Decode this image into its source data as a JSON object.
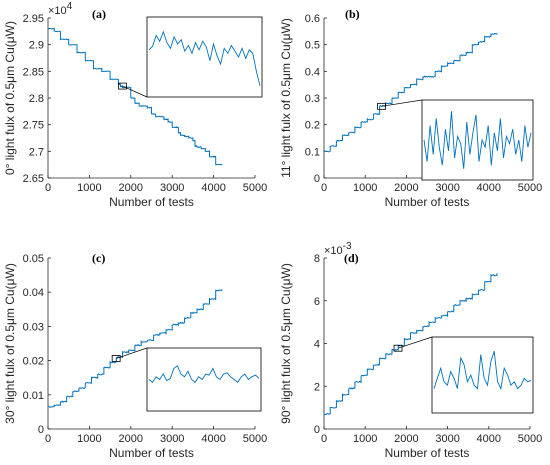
{
  "colors": {
    "line": "#0072bd",
    "axis": "#262626",
    "box": "#000000"
  },
  "chart_data": [
    {
      "panel": "(a)",
      "type": "line",
      "xlabel": "Number of tests",
      "ylabel": "0° light fulx of 0.5μm Cu(μW)",
      "xlim": [
        0,
        5000
      ],
      "ylim": [
        2.65,
        2.95
      ],
      "y_multiplier": "×10^4",
      "x_ticks": [
        "0",
        "1000",
        "2000",
        "3000",
        "4000",
        "5000"
      ],
      "y_ticks": [
        "2.65",
        "2.7",
        "2.75",
        "2.8",
        "2.85",
        "2.9",
        "2.95"
      ],
      "x_tick_values": [
        0,
        1000,
        2000,
        3000,
        4000,
        5000
      ],
      "y_tick_values": [
        2.65,
        2.7,
        2.75,
        2.8,
        2.85,
        2.9,
        2.95
      ],
      "series": [
        {
          "x": [
            0,
            150,
            300,
            500,
            700,
            900,
            1100,
            1300,
            1500,
            1700,
            1750,
            1800,
            2000,
            2100,
            2200,
            2400,
            2500,
            2600,
            2800,
            2900,
            3000,
            3100,
            3150,
            3200,
            3300,
            3400,
            3500,
            3550,
            3600,
            3700,
            3800,
            3900,
            4000,
            4050,
            4200
          ],
          "y": [
            2.93,
            2.925,
            2.91,
            2.9,
            2.885,
            2.87,
            2.855,
            2.85,
            2.835,
            2.826,
            2.822,
            2.82,
            2.8,
            2.79,
            2.785,
            2.782,
            2.77,
            2.765,
            2.76,
            2.755,
            2.745,
            2.745,
            2.735,
            2.73,
            2.728,
            2.725,
            2.72,
            2.71,
            2.708,
            2.705,
            2.7,
            2.69,
            2.69,
            2.675,
            2.675
          ]
        }
      ],
      "focus": {
        "x": [
          1700,
          1850
        ],
        "y": [
          2.818,
          2.828
        ]
      },
      "inset_series": [
        0.6,
        0.65,
        0.8,
        0.72,
        0.85,
        0.7,
        0.62,
        0.78,
        0.68,
        0.74,
        0.58,
        0.66,
        0.55,
        0.7,
        0.6,
        0.72,
        0.64,
        0.45,
        0.68,
        0.52,
        0.4,
        0.62,
        0.55,
        0.66,
        0.58,
        0.5,
        0.62,
        0.48,
        0.6,
        0.55,
        0.3,
        0.1
      ]
    },
    {
      "panel": "(b)",
      "type": "line",
      "xlabel": "Number of tests",
      "ylabel": "11° light fulx of 0.5μm Cu(μW)",
      "xlim": [
        0,
        5000
      ],
      "ylim": [
        0,
        0.6
      ],
      "x_ticks": [
        "0",
        "1000",
        "2000",
        "3000",
        "4000",
        "5000"
      ],
      "y_ticks": [
        "0",
        "0.1",
        "0.2",
        "0.3",
        "0.4",
        "0.5",
        "0.6"
      ],
      "x_tick_values": [
        0,
        1000,
        2000,
        3000,
        4000,
        5000
      ],
      "y_tick_values": [
        0,
        0.1,
        0.2,
        0.3,
        0.4,
        0.5,
        0.6
      ],
      "series": [
        {
          "x": [
            0,
            150,
            300,
            450,
            600,
            750,
            900,
            1050,
            1200,
            1350,
            1500,
            1650,
            1800,
            1950,
            2100,
            2250,
            2400,
            2550,
            2700,
            2850,
            3000,
            3150,
            3300,
            3450,
            3600,
            3750,
            3900,
            4050,
            4200
          ],
          "y": [
            0.1,
            0.12,
            0.14,
            0.16,
            0.17,
            0.19,
            0.21,
            0.22,
            0.24,
            0.27,
            0.28,
            0.3,
            0.32,
            0.34,
            0.35,
            0.37,
            0.38,
            0.38,
            0.4,
            0.42,
            0.43,
            0.44,
            0.46,
            0.47,
            0.5,
            0.51,
            0.53,
            0.54,
            0.54
          ]
        }
      ],
      "focus": {
        "x": [
          1300,
          1450
        ],
        "y": [
          0.262,
          0.28
        ]
      },
      "inset_series": [
        0.5,
        0.2,
        0.7,
        0.3,
        0.8,
        0.4,
        0.15,
        0.65,
        0.35,
        0.9,
        0.25,
        0.55,
        0.45,
        0.1,
        0.75,
        0.3,
        0.6,
        0.85,
        0.2,
        0.5,
        0.4,
        0.7,
        0.15,
        0.6,
        0.35,
        0.8,
        0.25,
        0.55,
        0.45,
        0.65,
        0.3,
        0.5,
        0.2,
        0.7,
        0.4,
        0.6
      ]
    },
    {
      "panel": "(c)",
      "type": "line",
      "xlabel": "Number of tests",
      "ylabel": "30° light fulx of 0.5μm Cu(μW)",
      "xlim": [
        0,
        5000
      ],
      "ylim": [
        0,
        0.05
      ],
      "x_ticks": [
        "0",
        "1000",
        "2000",
        "3000",
        "4000",
        "5000"
      ],
      "y_ticks": [
        "0",
        "0.01",
        "0.02",
        "0.03",
        "0.04",
        "0.05"
      ],
      "x_tick_values": [
        0,
        1000,
        2000,
        3000,
        4000,
        5000
      ],
      "y_tick_values": [
        0,
        0.01,
        0.02,
        0.03,
        0.04,
        0.05
      ],
      "series": [
        {
          "x": [
            0,
            150,
            300,
            450,
            600,
            750,
            900,
            1050,
            1200,
            1350,
            1500,
            1650,
            1800,
            1950,
            2100,
            2250,
            2400,
            2550,
            2700,
            2850,
            3000,
            3150,
            3300,
            3450,
            3600,
            3750,
            3900,
            4050,
            4200
          ],
          "y": [
            0.0065,
            0.007,
            0.008,
            0.0095,
            0.011,
            0.012,
            0.0135,
            0.015,
            0.016,
            0.018,
            0.0195,
            0.021,
            0.0225,
            0.023,
            0.0245,
            0.0255,
            0.026,
            0.0275,
            0.028,
            0.029,
            0.0305,
            0.031,
            0.0325,
            0.034,
            0.035,
            0.0365,
            0.038,
            0.0405,
            0.041
          ]
        }
      ],
      "focus": {
        "x": [
          1550,
          1720
        ],
        "y": [
          0.0203,
          0.0215
        ]
      },
      "inset_series": [
        0.5,
        0.45,
        0.55,
        0.5,
        0.6,
        0.48,
        0.52,
        0.7,
        0.75,
        0.6,
        0.55,
        0.65,
        0.5,
        0.45,
        0.55,
        0.5,
        0.6,
        0.58,
        0.7,
        0.55,
        0.5,
        0.6,
        0.62,
        0.55,
        0.5,
        0.45,
        0.55,
        0.6,
        0.5,
        0.55,
        0.58,
        0.52
      ]
    },
    {
      "panel": "(d)",
      "type": "line",
      "xlabel": "Number of tests",
      "ylabel": "90° light fulx of 0.5μm Cu(μW)",
      "xlim": [
        0,
        5000
      ],
      "ylim": [
        0,
        0.008
      ],
      "y_multiplier": "×10^-3",
      "x_ticks": [
        "0",
        "1000",
        "2000",
        "3000",
        "4000",
        "5000"
      ],
      "y_ticks": [
        "0",
        "2",
        "4",
        "6",
        "8"
      ],
      "x_tick_values": [
        0,
        1000,
        2000,
        3000,
        4000,
        5000
      ],
      "y_tick_values": [
        0,
        0.002,
        0.004,
        0.006,
        0.008
      ],
      "series": [
        {
          "x": [
            0,
            150,
            300,
            450,
            600,
            750,
            900,
            1050,
            1200,
            1350,
            1500,
            1650,
            1800,
            1950,
            2100,
            2250,
            2400,
            2550,
            2700,
            2850,
            3000,
            3150,
            3300,
            3450,
            3600,
            3750,
            3900,
            4050,
            4200
          ],
          "y": [
            0.0007,
            0.001,
            0.0013,
            0.0016,
            0.0019,
            0.0022,
            0.0025,
            0.0028,
            0.003,
            0.0033,
            0.0035,
            0.0037,
            0.0039,
            0.0042,
            0.0045,
            0.0046,
            0.0048,
            0.005,
            0.0052,
            0.0053,
            0.0055,
            0.0058,
            0.006,
            0.0061,
            0.0063,
            0.0065,
            0.0069,
            0.0072,
            0.0073
          ]
        }
      ],
      "focus": {
        "x": [
          1700,
          1850
        ],
        "y": [
          0.00372,
          0.00392
        ]
      },
      "inset_series": [
        0.3,
        0.45,
        0.6,
        0.4,
        0.35,
        0.55,
        0.45,
        0.3,
        0.75,
        0.65,
        0.4,
        0.5,
        0.35,
        0.3,
        0.8,
        0.45,
        0.35,
        0.7,
        0.85,
        0.4,
        0.3,
        0.6,
        0.5,
        0.35,
        0.4,
        0.3,
        0.35,
        0.45,
        0.4,
        0.42
      ]
    }
  ]
}
